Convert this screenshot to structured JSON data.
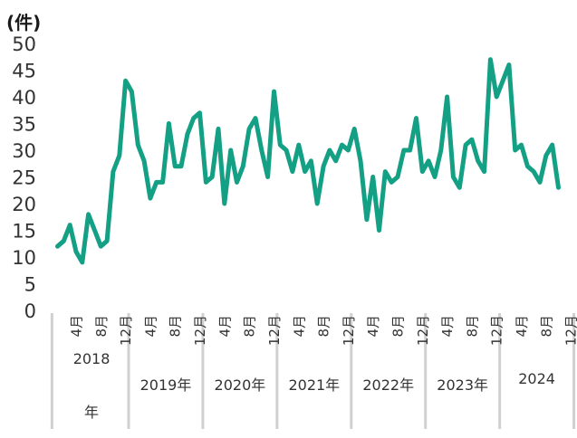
{
  "chart_data": {
    "type": "line",
    "unit_label": "(件)",
    "yticks": [
      "0",
      "5",
      "10",
      "15",
      "20",
      "25",
      "30",
      "35",
      "40",
      "45",
      "50"
    ],
    "ylim": [
      0,
      50
    ],
    "grid": false,
    "line_color": "#14a085",
    "separator_color": "#d0d0d0",
    "month_labels": [
      {
        "i": 3,
        "text": "4月"
      },
      {
        "i": 7,
        "text": "8月"
      },
      {
        "i": 11,
        "text": "12月"
      },
      {
        "i": 15,
        "text": "4月"
      },
      {
        "i": 19,
        "text": "8月"
      },
      {
        "i": 23,
        "text": "12月"
      },
      {
        "i": 27,
        "text": "4月"
      },
      {
        "i": 31,
        "text": "8月"
      },
      {
        "i": 35,
        "text": "12月"
      },
      {
        "i": 39,
        "text": "4月"
      },
      {
        "i": 43,
        "text": "8月"
      },
      {
        "i": 47,
        "text": "12月"
      },
      {
        "i": 51,
        "text": "4月"
      },
      {
        "i": 55,
        "text": "8月"
      },
      {
        "i": 59,
        "text": "12月"
      },
      {
        "i": 63,
        "text": "4月"
      },
      {
        "i": 67,
        "text": "8月"
      },
      {
        "i": 71,
        "text": "12月"
      },
      {
        "i": 75,
        "text": "4月"
      },
      {
        "i": 79,
        "text": "8月"
      },
      {
        "i": 83,
        "text": "12月"
      }
    ],
    "year_groups": [
      {
        "label": "2018",
        "label2": "年",
        "start": 0,
        "end": 11
      },
      {
        "label": "2019年",
        "start": 12,
        "end": 23
      },
      {
        "label": "2020年",
        "start": 24,
        "end": 35
      },
      {
        "label": "2021年",
        "start": 36,
        "end": 47
      },
      {
        "label": "2022年",
        "start": 48,
        "end": 59
      },
      {
        "label": "2023年",
        "start": 60,
        "end": 71
      },
      {
        "label": "2024",
        "start": 72,
        "end": 83
      }
    ],
    "series": [
      {
        "values": [
          12,
          13,
          16,
          11,
          9,
          18,
          15,
          12,
          13,
          26,
          29,
          43,
          41,
          31,
          28,
          21,
          24,
          24,
          35,
          27,
          27,
          33,
          36,
          37,
          24,
          25,
          34,
          20,
          30,
          24,
          27,
          34,
          36,
          30,
          25,
          41,
          31,
          30,
          26,
          31,
          26,
          28,
          20,
          27,
          30,
          28,
          31,
          30,
          34,
          28,
          17,
          25,
          15,
          26,
          24,
          25,
          30,
          30,
          36,
          26,
          28,
          25,
          30,
          40,
          25,
          23,
          31,
          32,
          28,
          26,
          47,
          40,
          43,
          46,
          30,
          31,
          27,
          26,
          24,
          29,
          31,
          23
        ]
      }
    ]
  }
}
